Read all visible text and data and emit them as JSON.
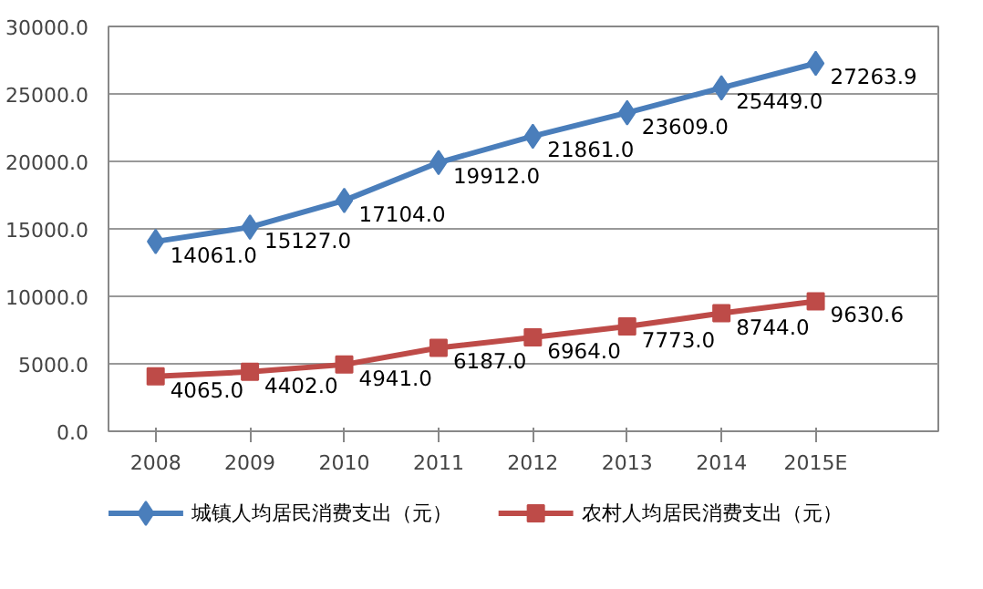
{
  "chart_data": {
    "type": "line",
    "categories": [
      "2008",
      "2009",
      "2010",
      "2011",
      "2012",
      "2013",
      "2014",
      "2015E"
    ],
    "series": [
      {
        "name": "城镇人均居民消费支出（元）",
        "color": "#4a7ebb",
        "marker": "diamond",
        "values": [
          14061.0,
          15127.0,
          17104.0,
          19912.0,
          21861.0,
          23609.0,
          25449.0,
          27263.9
        ],
        "value_labels": [
          "14061.0",
          "15127.0",
          "17104.0",
          "19912.0",
          "21861.0",
          "23609.0",
          "25449.0",
          "27263.9"
        ]
      },
      {
        "name": "农村人均居民消费支出（元）",
        "color": "#be4b48",
        "marker": "square",
        "values": [
          4065.0,
          4402.0,
          4941.0,
          6187.0,
          6964.0,
          7773.0,
          8744.0,
          9630.6
        ],
        "value_labels": [
          "4065.0",
          "4402.0",
          "4941.0",
          "6187.0",
          "6964.0",
          "7773.0",
          "8744.0",
          "9630.6"
        ]
      }
    ],
    "ylim": [
      0,
      30000
    ],
    "yticks": [
      {
        "value": 0,
        "label": "0.0"
      },
      {
        "value": 5000,
        "label": "5000.0"
      },
      {
        "value": 10000,
        "label": "10000.0"
      },
      {
        "value": 15000,
        "label": "15000.0"
      },
      {
        "value": 20000,
        "label": "20000.0"
      },
      {
        "value": 25000,
        "label": "25000.0"
      },
      {
        "value": 30000,
        "label": "30000.0"
      }
    ],
    "grid": "y",
    "legend": "bottom",
    "line_style": "solid"
  }
}
